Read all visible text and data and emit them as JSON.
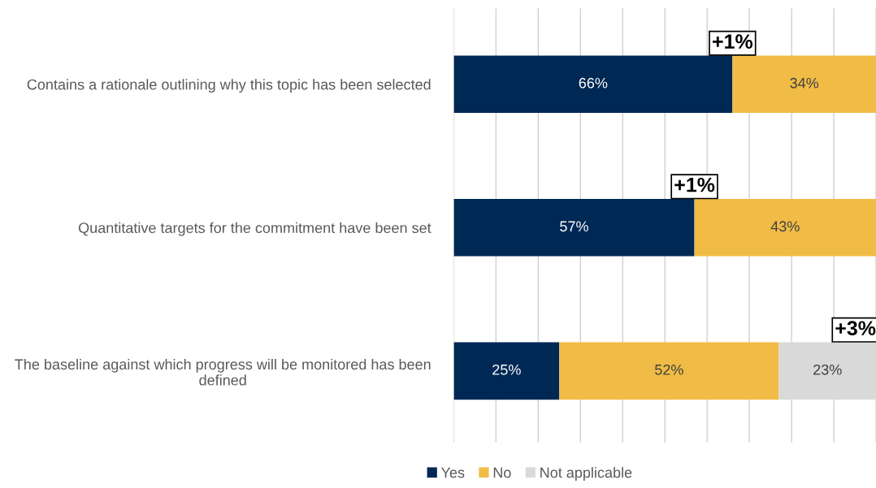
{
  "chart_data": {
    "type": "bar",
    "orientation": "horizontal",
    "stacked": true,
    "categories": [
      "Contains a rationale outlining why this topic has been selected",
      "Quantitative targets for the commitment have been set",
      "The baseline against which progress will be monitored has been defined"
    ],
    "series": [
      {
        "name": "Yes",
        "color": "#002855",
        "values": [
          66,
          57,
          25
        ],
        "value_labels": [
          "66%",
          "57%",
          "25%"
        ]
      },
      {
        "name": "No",
        "color": "#f1bc46",
        "values": [
          34,
          43,
          52
        ],
        "value_labels": [
          "34%",
          "43%",
          "52%"
        ]
      },
      {
        "name": "Not applicable",
        "color": "#d9d9d9",
        "values": [
          null,
          null,
          23
        ],
        "value_labels": [
          null,
          null,
          "23%"
        ]
      }
    ],
    "xlim": [
      0,
      100
    ],
    "xticks": [
      {
        "value": 0,
        "label": null
      },
      {
        "value": 10,
        "label": null
      },
      {
        "value": 20,
        "label": null
      },
      {
        "value": 30,
        "label": null
      },
      {
        "value": 40,
        "label": null
      },
      {
        "value": 50,
        "label": null
      },
      {
        "value": 60,
        "label": null
      },
      {
        "value": 70,
        "label": null
      },
      {
        "value": 80,
        "label": null
      },
      {
        "value": 90,
        "label": null
      },
      {
        "value": 100,
        "label": null
      }
    ],
    "tick_labels": "y",
    "grid": "x",
    "legend": "bottom",
    "annotations": [
      {
        "text": "+1%",
        "x": 66,
        "y": "Contains a rationale outlining why this topic has been selected"
      },
      {
        "text": "+1%",
        "x": 57,
        "y": "Quantitative targets for the commitment have been set"
      },
      {
        "text": "+3%",
        "x": 100,
        "y": "The baseline against which progress will be monitored has been defined"
      }
    ]
  }
}
